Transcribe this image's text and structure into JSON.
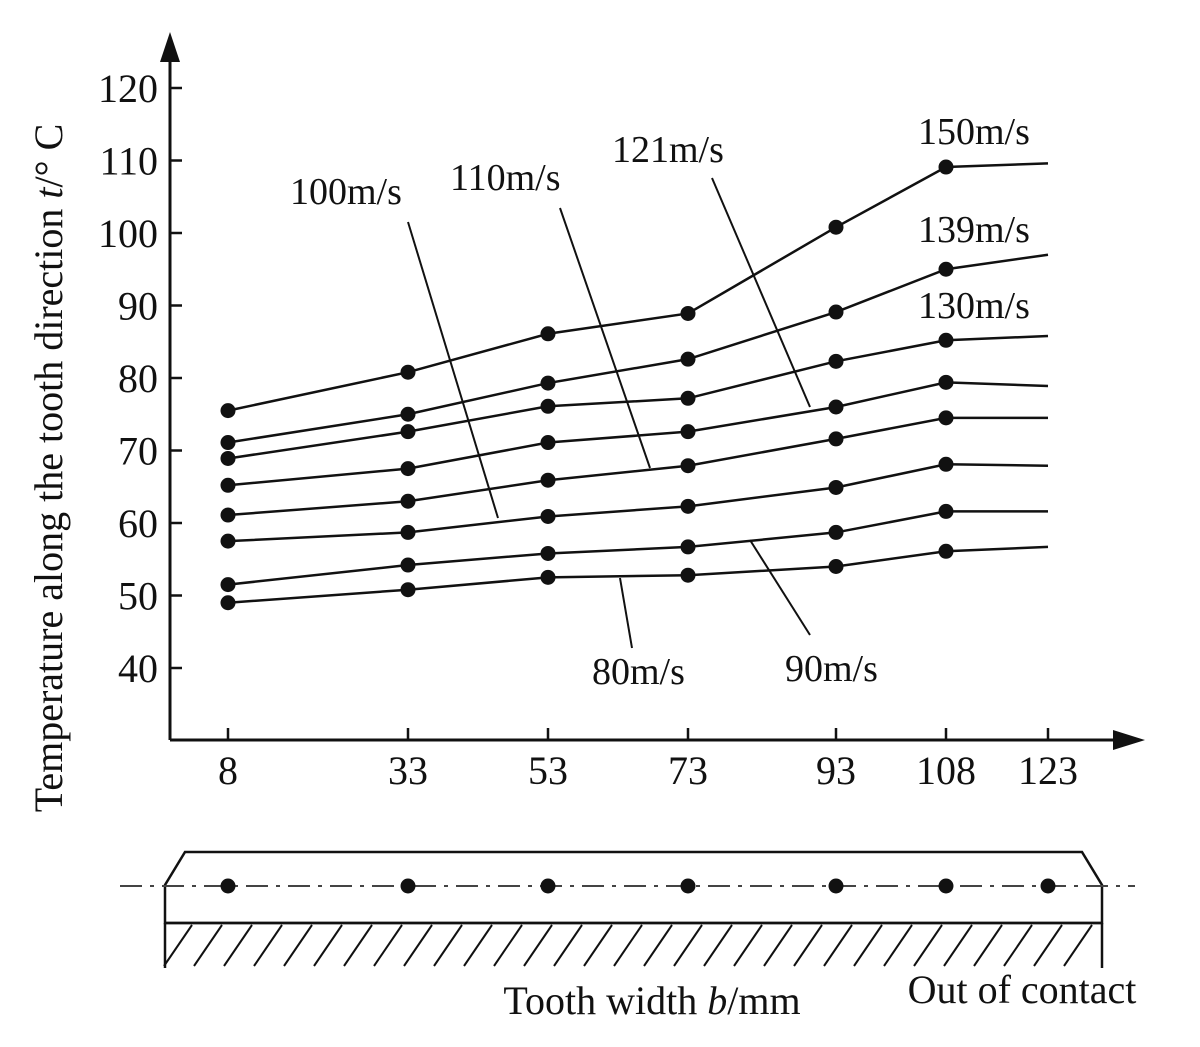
{
  "chart_data": {
    "type": "line",
    "x": [
      8,
      33,
      53,
      73,
      93,
      108,
      123
    ],
    "x_ticks": [
      "8",
      "33",
      "53",
      "73",
      "93",
      "108",
      "123"
    ],
    "y_ticks": [
      "40",
      "50",
      "60",
      "70",
      "80",
      "90",
      "100",
      "110",
      "120"
    ],
    "ylim": [
      32,
      128
    ],
    "ylabel_main": "Temperature along the tooth direction ",
    "ylabel_var": "t",
    "ylabel_unit": "/° C",
    "xlabel_main": "Tooth width ",
    "xlabel_var": "b",
    "xlabel_unit": "/mm",
    "contact_note": "Out of contact",
    "grid": false,
    "series": [
      {
        "name": "80m/s",
        "values": [
          49.0,
          50.8,
          52.5,
          52.8,
          54.0,
          56.1,
          56.7
        ]
      },
      {
        "name": "90m/s",
        "values": [
          51.5,
          54.2,
          55.8,
          56.7,
          58.7,
          61.6,
          61.6
        ]
      },
      {
        "name": "100m/s",
        "values": [
          57.5,
          58.7,
          60.9,
          62.3,
          64.9,
          68.1,
          67.9
        ]
      },
      {
        "name": "110m/s",
        "values": [
          61.1,
          63.0,
          65.9,
          67.9,
          71.6,
          74.5,
          74.5
        ]
      },
      {
        "name": "121m/s",
        "values": [
          65.2,
          67.5,
          71.1,
          72.6,
          76.0,
          79.4,
          78.9
        ]
      },
      {
        "name": "130m/s",
        "values": [
          68.9,
          72.6,
          76.1,
          77.2,
          82.3,
          85.2,
          85.8
        ]
      },
      {
        "name": "139m/s",
        "values": [
          71.1,
          75.0,
          79.3,
          82.6,
          89.1,
          95.0,
          97.0
        ]
      },
      {
        "name": "150m/s",
        "values": [
          75.5,
          80.8,
          86.1,
          88.9,
          100.8,
          109.1,
          109.6
        ]
      }
    ]
  }
}
